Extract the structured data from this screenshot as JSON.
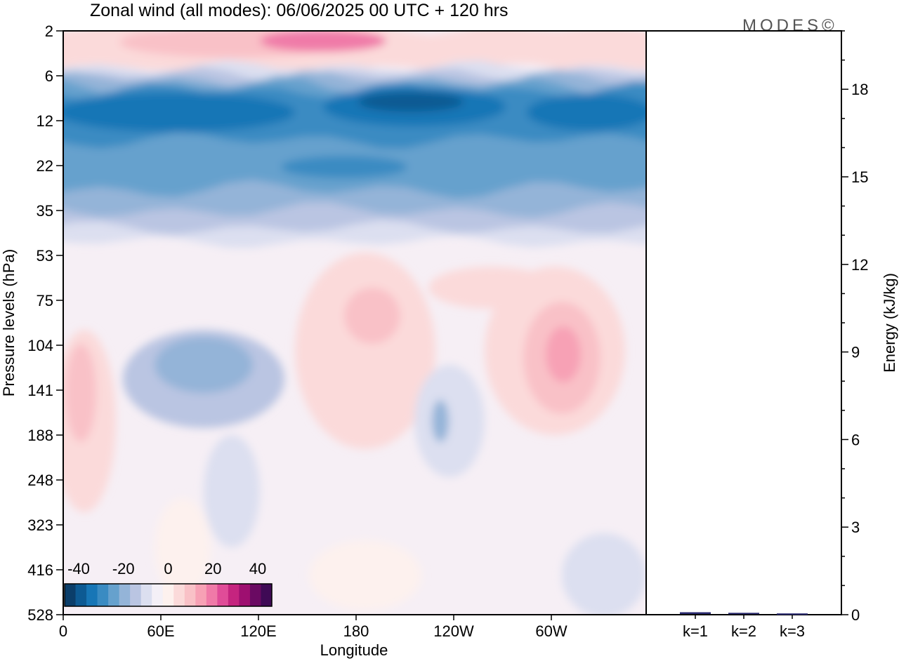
{
  "chart_data": [
    {
      "type": "heatmap",
      "title": "Zonal wind (all modes):  06/06/2025  00 UTC  + 120 hrs",
      "xlabel": "Longitude",
      "ylabel": "Pressure levels (hPa)",
      "x_ticks": [
        "0",
        "60E",
        "120E",
        "180",
        "120W",
        "60W"
      ],
      "y_ticks": [
        "2",
        "6",
        "12",
        "22",
        "35",
        "53",
        "75",
        "104",
        "141",
        "188",
        "248",
        "323",
        "416",
        "528"
      ],
      "colorbar": {
        "labels": [
          "-40",
          "-20",
          "0",
          "20",
          "40"
        ],
        "colors": [
          "#0b3e6a",
          "#0d5a93",
          "#1776b6",
          "#3a8bc2",
          "#66a1cd",
          "#94b4d8",
          "#bac5e2",
          "#dcdff0",
          "#f4f0f7",
          "#fdf1ee",
          "#fbdada",
          "#f9c1c7",
          "#f7a1b5",
          "#f07aa8",
          "#e04c98",
          "#c5247f",
          "#9e0f70",
          "#6a0a62",
          "#3f0a55"
        ]
      },
      "brand": "MODES©"
    },
    {
      "type": "bar",
      "ylabel": "Energy (kJ/kg)",
      "categories": [
        "k=1",
        "k=2",
        "k=3"
      ],
      "values": [
        0.06,
        0.04,
        0.02
      ],
      "y_ticks": [
        "0",
        "3",
        "6",
        "9",
        "12",
        "15",
        "18"
      ],
      "ylim": [
        0,
        20
      ],
      "bar_color": "#2a2a70"
    }
  ]
}
